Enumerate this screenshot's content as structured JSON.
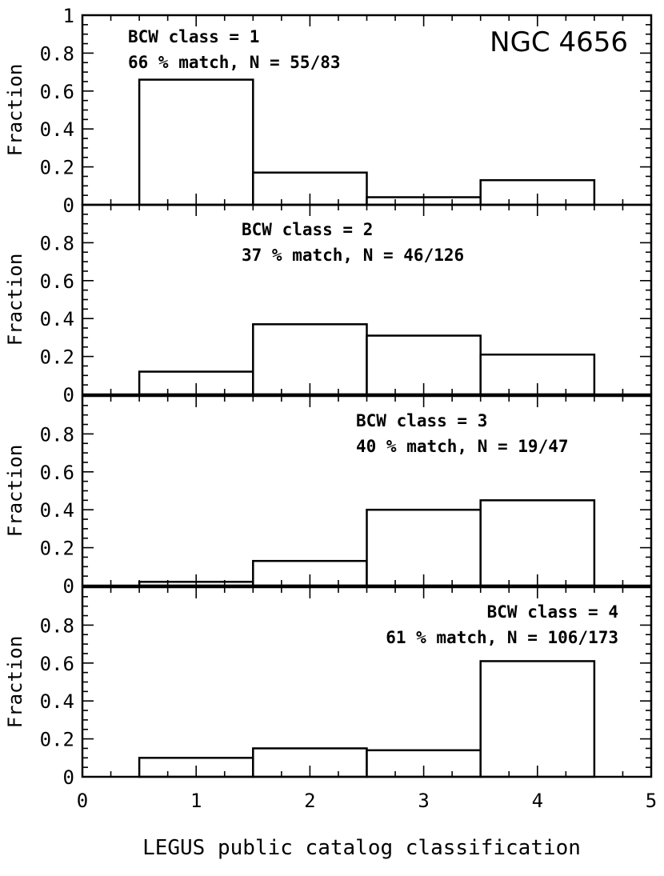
{
  "chart_data": {
    "type": "bar",
    "title": "NGC 4656",
    "xlabel": "LEGUS public catalog classification",
    "xlim": [
      0,
      5
    ],
    "xticks": [
      "0",
      "1",
      "2",
      "3",
      "4",
      "5"
    ],
    "categories": [
      1,
      2,
      3,
      4
    ],
    "panels": [
      {
        "annotation_line1": "BCW class = 1",
        "annotation_line2": "66 % match, N = 55/83",
        "ylabel": "Fraction",
        "ylim": [
          0,
          1
        ],
        "yticks": [
          "0",
          "0.2",
          "0.4",
          "0.6",
          "0.8",
          "1"
        ],
        "values": [
          0.66,
          0.17,
          0.04,
          0.13
        ]
      },
      {
        "annotation_line1": "BCW class = 2",
        "annotation_line2": "37 % match, N = 46/126",
        "ylabel": "Fraction",
        "ylim": [
          0,
          1
        ],
        "yticks": [
          "0",
          "0.2",
          "0.4",
          "0.6",
          "0.8"
        ],
        "values": [
          0.12,
          0.37,
          0.31,
          0.21
        ]
      },
      {
        "annotation_line1": "BCW class = 3",
        "annotation_line2": "40 % match, N = 19/47",
        "ylabel": "Fraction",
        "ylim": [
          0,
          1
        ],
        "yticks": [
          "0",
          "0.2",
          "0.4",
          "0.6",
          "0.8"
        ],
        "values": [
          0.02,
          0.13,
          0.4,
          0.45
        ]
      },
      {
        "annotation_line1": "BCW class = 4",
        "annotation_line2": "61 % match, N = 106/173",
        "ylabel": "Fraction",
        "ylim": [
          0,
          1
        ],
        "yticks": [
          "0",
          "0.2",
          "0.4",
          "0.6",
          "0.8"
        ],
        "values": [
          0.1,
          0.15,
          0.14,
          0.61
        ]
      }
    ]
  }
}
